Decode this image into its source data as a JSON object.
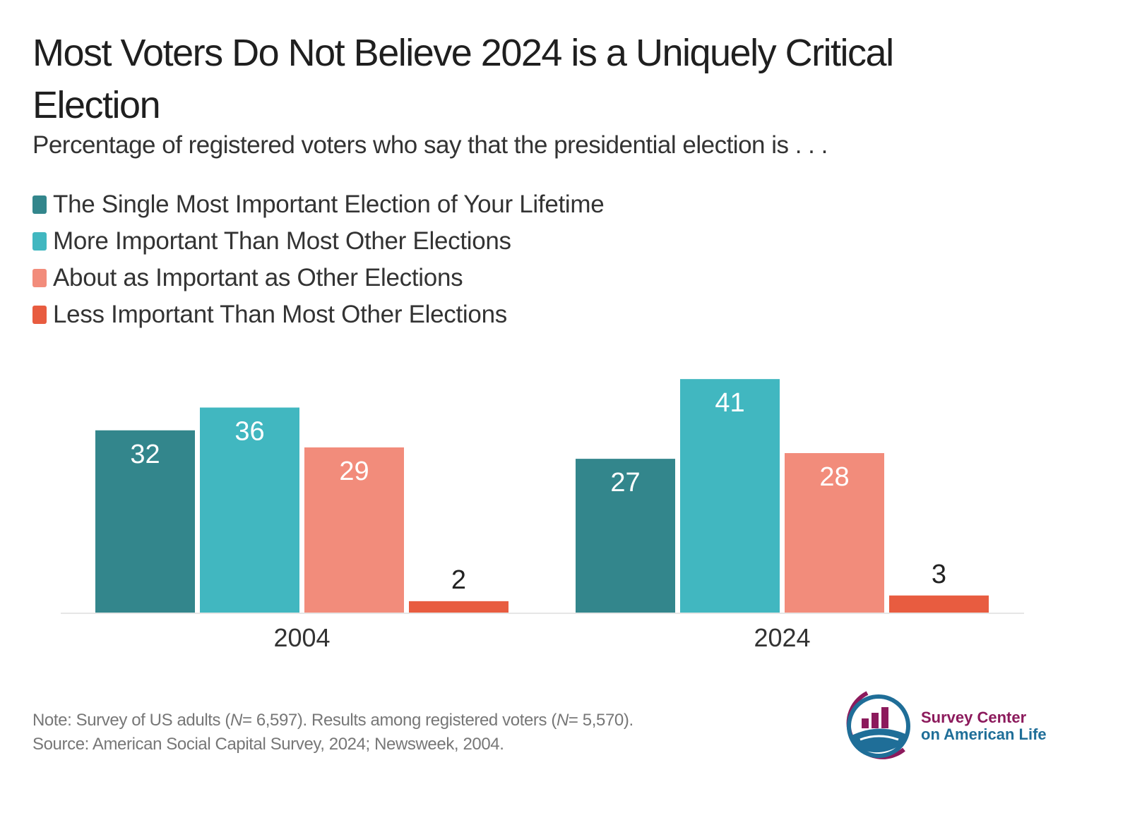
{
  "chart_data": {
    "type": "bar",
    "title": "Most Voters Do Not Believe 2024 is a Uniquely Critical Election",
    "subtitle": "Percentage of registered voters who say that the presidential election is . . .",
    "categories": [
      "2004",
      "2024"
    ],
    "series": [
      {
        "name": "The Single Most Important Election of Your Lifetime",
        "color": "#33868c",
        "values": [
          32,
          27
        ]
      },
      {
        "name": "More Important Than Most Other Elections",
        "color": "#41b7c0",
        "values": [
          36,
          41
        ]
      },
      {
        "name": "About as Important as Other Elections",
        "color": "#f28c7b",
        "values": [
          29,
          28
        ]
      },
      {
        "name": "Less Important Than Most Other Elections",
        "color": "#e85c40",
        "values": [
          2,
          3
        ]
      }
    ],
    "xlabel": "",
    "ylabel": "",
    "ylim": [
      0,
      41
    ],
    "grid": false,
    "legend": "top-left",
    "data_labels": true
  },
  "footer": {
    "note_prefix": "Note: Survey of US adults (",
    "n_symbol": "N",
    "note_n1": "= 6,597). Results among registered voters (",
    "note_n2": "= 5,570).",
    "source": "Source: American Social Capital Survey, 2024; Newsweek, 2004."
  },
  "logo": {
    "line1": "Survey Center",
    "line2": "on American Life",
    "color_primary": "#8c1a5c",
    "color_secondary": "#1f6e98"
  }
}
